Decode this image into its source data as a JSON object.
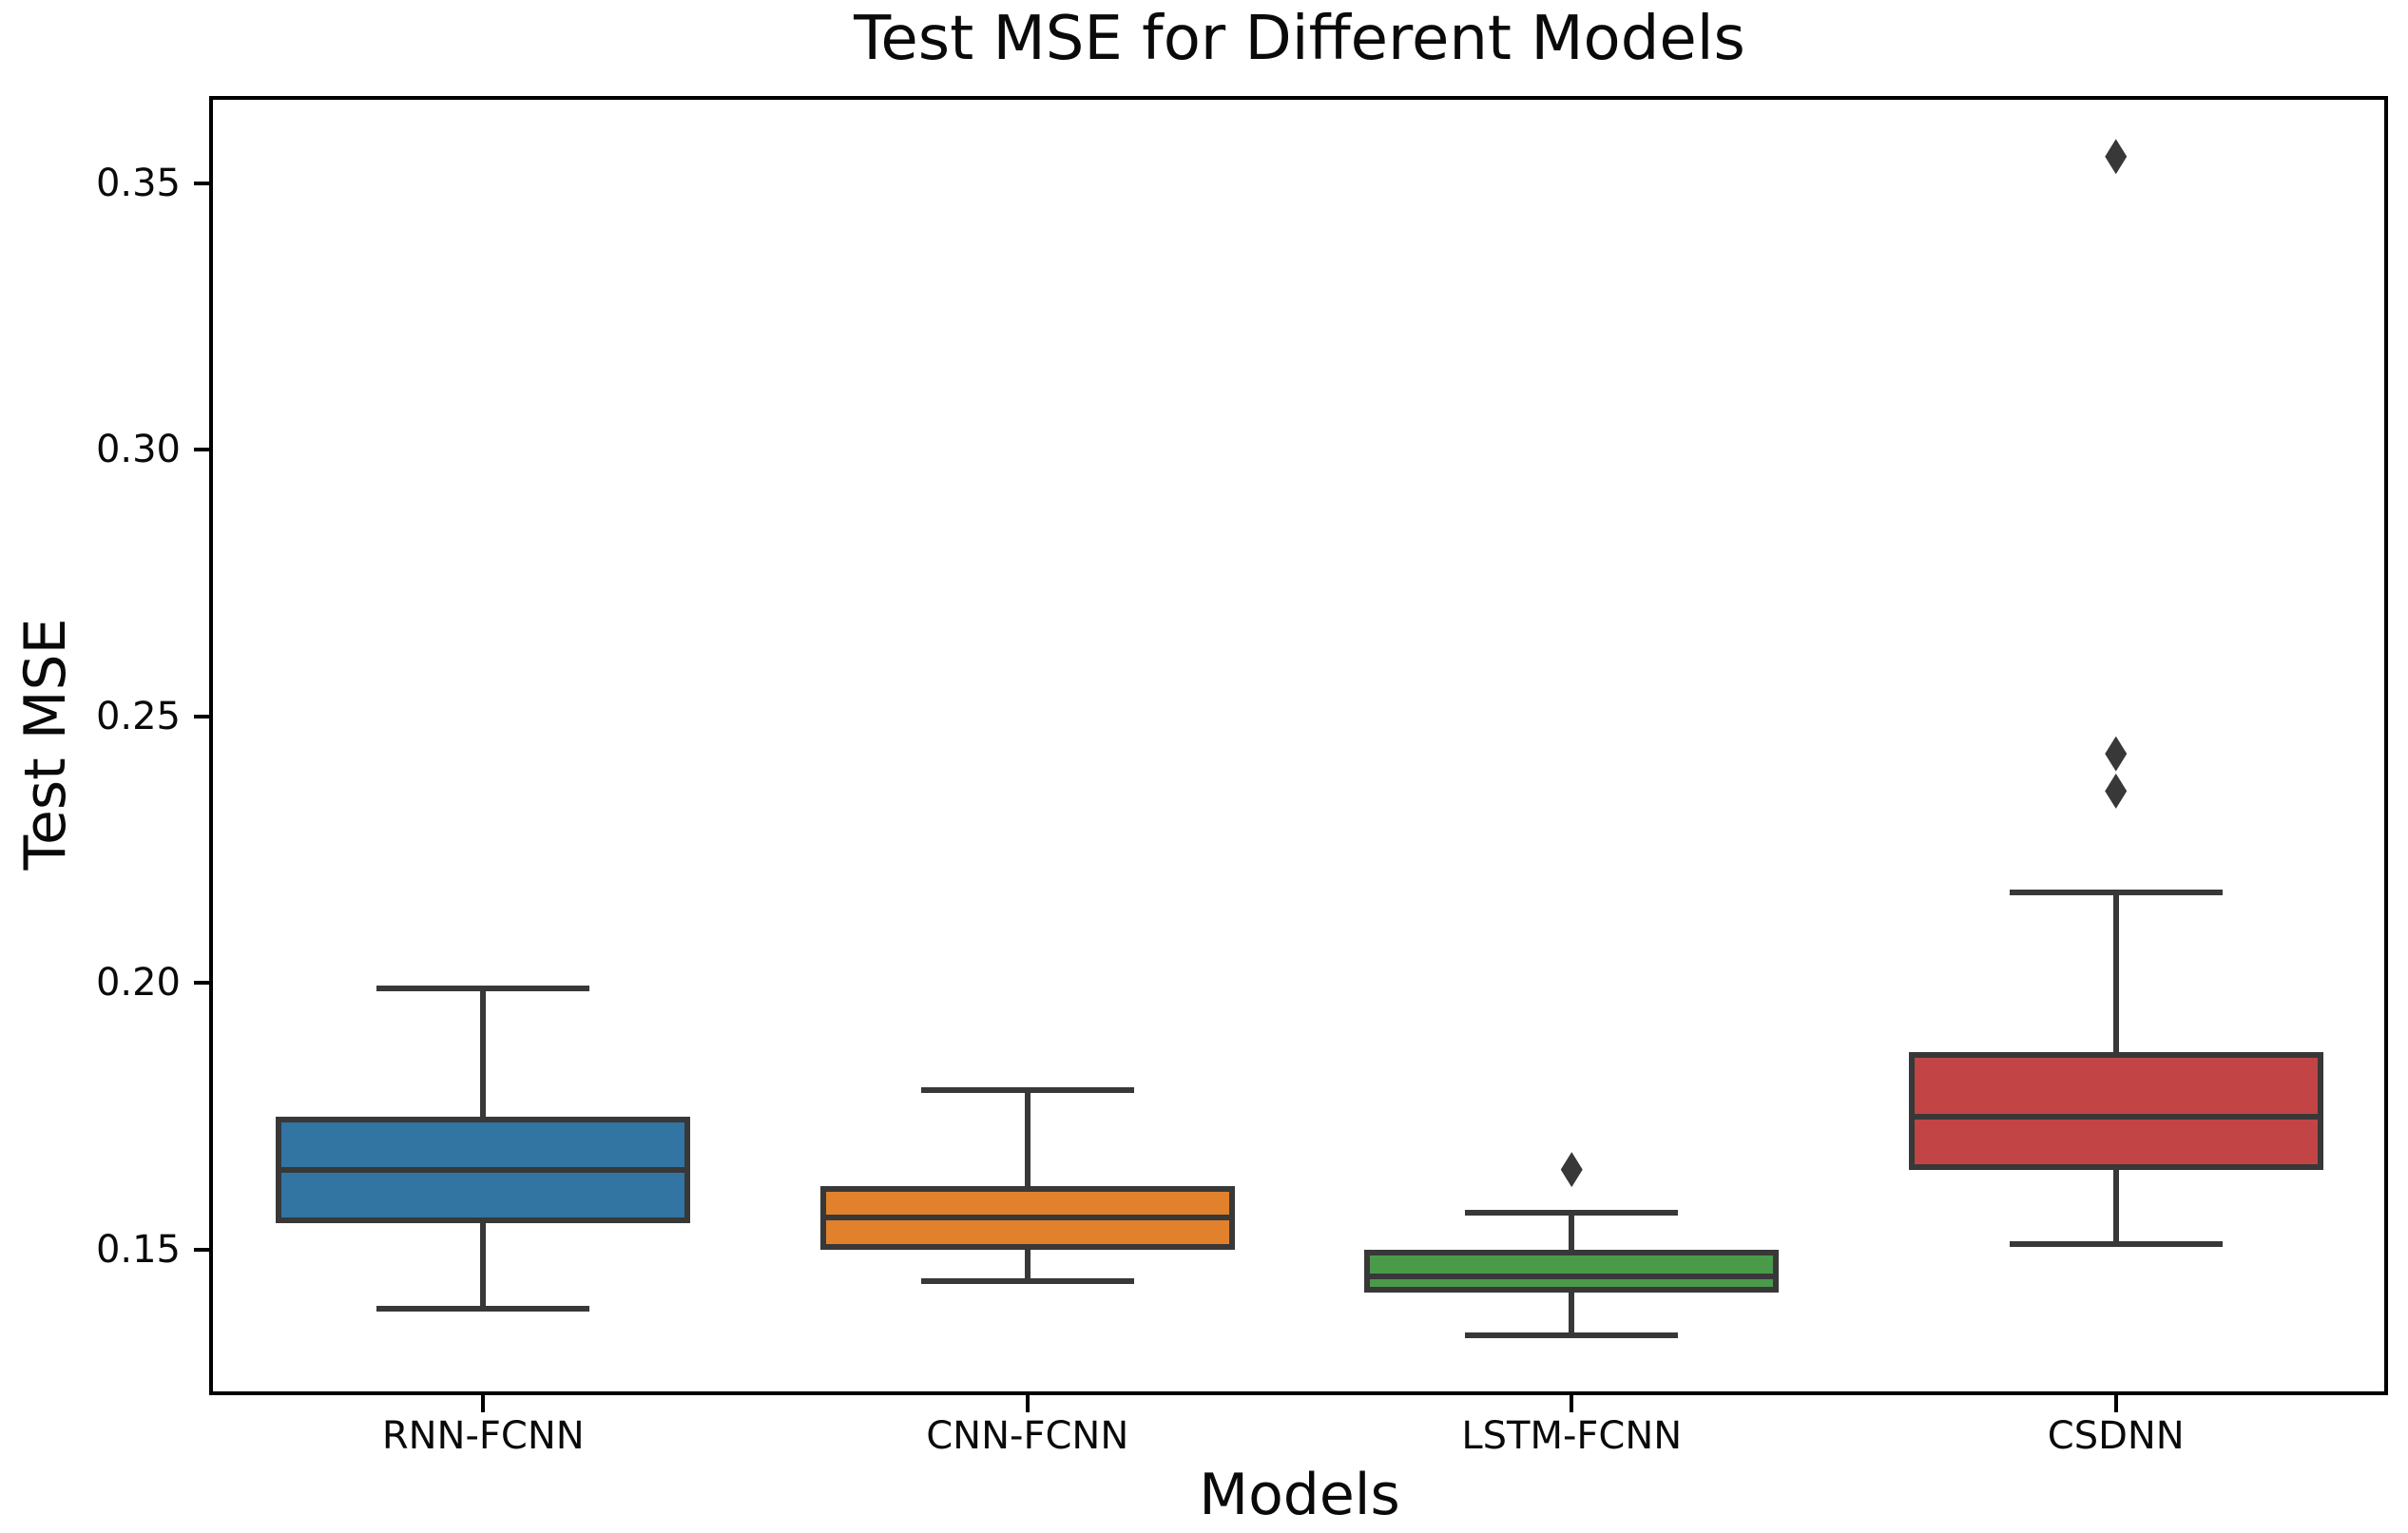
{
  "chart_data": {
    "type": "box",
    "title": "Test MSE for Different Models",
    "xlabel": "Models",
    "ylabel": "Test MSE",
    "ylim": [
      0.1227,
      0.366
    ],
    "grid": false,
    "legend": "none",
    "yticks": [
      {
        "value": 0.15,
        "label": "0.15"
      },
      {
        "value": 0.2,
        "label": "0.20"
      },
      {
        "value": 0.25,
        "label": "0.25"
      },
      {
        "value": 0.3,
        "label": "0.30"
      },
      {
        "value": 0.35,
        "label": "0.35"
      }
    ],
    "categories": [
      "RNN-FCNN",
      "CNN-FCNN",
      "LSTM-FCNN",
      "CSDNN"
    ],
    "series": [
      {
        "name": "RNN-FCNN",
        "fill_color": "#3274a2",
        "whisker_low": 0.139,
        "q1": 0.155,
        "median": 0.165,
        "q3": 0.175,
        "whisker_high": 0.199,
        "outliers": []
      },
      {
        "name": "CNN-FCNN",
        "fill_color": "#e1812b",
        "whisker_low": 0.144,
        "q1": 0.15,
        "median": 0.156,
        "q3": 0.162,
        "whisker_high": 0.18,
        "outliers": []
      },
      {
        "name": "LSTM-FCNN",
        "fill_color": "#4a9a4a",
        "whisker_low": 0.134,
        "q1": 0.142,
        "median": 0.145,
        "q3": 0.15,
        "whisker_high": 0.157,
        "outliers": [
          0.165
        ]
      },
      {
        "name": "CSDNN",
        "fill_color": "#c24444",
        "whisker_low": 0.151,
        "q1": 0.165,
        "median": 0.175,
        "q3": 0.187,
        "whisker_high": 0.217,
        "outliers": [
          0.236,
          0.243,
          0.355
        ]
      }
    ],
    "line_color": "#383838"
  }
}
